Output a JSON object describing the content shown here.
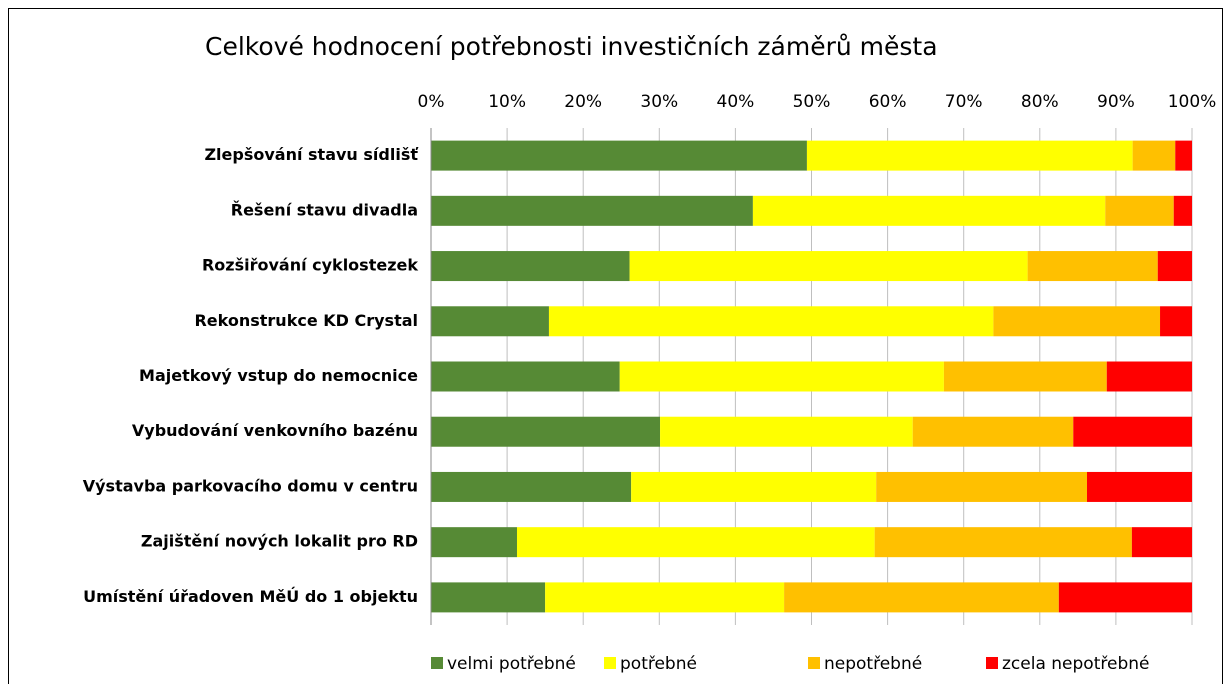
{
  "chart_data": {
    "type": "stacked-bar-horizontal",
    "title": "Celkové hodnocení potřebnosti investičních záměrů města",
    "categories": [
      "Zlepšování stavu sídlišť",
      "Řešení stavu divadla",
      "Rozšiřování cyklostezek",
      "Rekonstrukce KD Crystal",
      "Majetkový vstup do nemocnice",
      "Vybudování venkovního bazénu",
      "Výstavba parkovacího domu v centru",
      "Zajištění nových lokalit pro RD",
      "Umístění úřadoven MěÚ do 1 objektu"
    ],
    "series": [
      {
        "name": "velmi potřebné",
        "color": "#568a35",
        "values": [
          49.4,
          42.3,
          26.1,
          15.5,
          24.8,
          30.1,
          26.3,
          11.3,
          15.0
        ]
      },
      {
        "name": "potřebné",
        "color": "#ffff00",
        "values": [
          42.8,
          46.3,
          52.3,
          58.4,
          42.6,
          33.2,
          32.2,
          47.0,
          31.4
        ]
      },
      {
        "name": "nepotřebné",
        "color": "#ffc000",
        "values": [
          5.6,
          9.0,
          17.1,
          21.9,
          21.4,
          21.1,
          27.7,
          33.8,
          36.1
        ]
      },
      {
        "name": "zcela nepotřebné",
        "color": "#ff0000",
        "values": [
          2.2,
          2.4,
          4.5,
          4.2,
          11.2,
          15.6,
          13.8,
          7.9,
          17.5
        ]
      }
    ],
    "xlim": [
      0,
      100
    ],
    "xticks": [
      {
        "value": 0,
        "label": "0%"
      },
      {
        "value": 10,
        "label": "10%"
      },
      {
        "value": 20,
        "label": "20%"
      },
      {
        "value": 30,
        "label": "30%"
      },
      {
        "value": 40,
        "label": "40%"
      },
      {
        "value": 50,
        "label": "50%"
      },
      {
        "value": 60,
        "label": "60%"
      },
      {
        "value": 70,
        "label": "70%"
      },
      {
        "value": 80,
        "label": "80%"
      },
      {
        "value": 90,
        "label": "90%"
      },
      {
        "value": 100,
        "label": "100%"
      }
    ],
    "grid": true,
    "legend": "bottom"
  }
}
